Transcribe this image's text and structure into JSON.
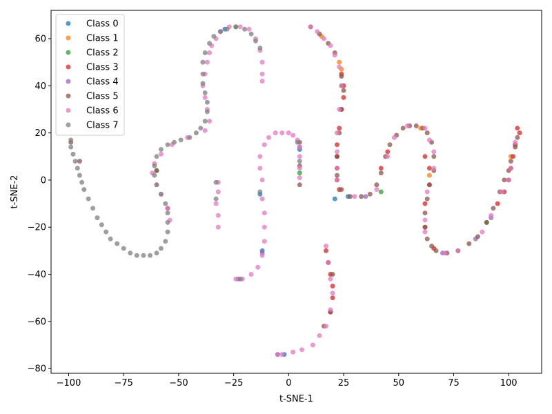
{
  "chart_data": {
    "type": "scatter",
    "title": "",
    "xlabel": "t-SNE-1",
    "ylabel": "t-SNE-2",
    "xlim": [
      -108,
      115
    ],
    "ylim": [
      -82,
      72
    ],
    "xticks": [
      -100,
      -75,
      -50,
      -25,
      0,
      25,
      50,
      75,
      100
    ],
    "yticks": [
      -80,
      -60,
      -40,
      -20,
      0,
      20,
      40,
      60
    ],
    "grid": false,
    "legend_position": "top-left",
    "point_alpha": 0.75,
    "series": [
      {
        "name": "Class 0",
        "color": "#1f77b4",
        "points": [
          [
            -29,
            64
          ],
          [
            -13,
            -6
          ],
          [
            5,
            13
          ],
          [
            -12,
            -30
          ],
          [
            21,
            -8
          ],
          [
            -5,
            -74
          ],
          [
            -2,
            -74
          ],
          [
            27,
            -7
          ]
        ]
      },
      {
        "name": "Class 1",
        "color": "#ff7f0e",
        "points": [
          [
            23,
            50
          ],
          [
            24,
            47
          ],
          [
            15,
            61
          ],
          [
            22,
            10
          ],
          [
            60,
            22
          ],
          [
            64,
            2
          ],
          [
            101,
            10
          ]
        ]
      },
      {
        "name": "Class 2",
        "color": "#2ca02c",
        "points": [
          [
            -60,
            4
          ],
          [
            -24,
            65
          ],
          [
            5,
            3
          ],
          [
            24,
            40
          ],
          [
            42,
            -5
          ],
          [
            90,
            -18
          ]
        ]
      },
      {
        "name": "Class 3",
        "color": "#d62728",
        "points": [
          [
            24,
            45
          ],
          [
            25,
            40
          ],
          [
            25,
            35
          ],
          [
            24,
            30
          ],
          [
            23,
            22
          ],
          [
            22,
            15
          ],
          [
            22,
            10
          ],
          [
            22,
            5
          ],
          [
            22,
            0
          ],
          [
            23,
            -4
          ],
          [
            17,
            -30
          ],
          [
            18,
            -35
          ],
          [
            19,
            -40
          ],
          [
            20,
            -45
          ],
          [
            20,
            -50
          ],
          [
            19,
            -56
          ],
          [
            62,
            10
          ],
          [
            64,
            5
          ],
          [
            64,
            -2
          ],
          [
            62,
            -10
          ],
          [
            62,
            -20
          ],
          [
            66,
            -29
          ],
          [
            104,
            22
          ],
          [
            105,
            20
          ],
          [
            103,
            15
          ],
          [
            102,
            10
          ],
          [
            101,
            5
          ],
          [
            100,
            0
          ],
          [
            98,
            -5
          ],
          [
            95,
            -10
          ],
          [
            45,
            12
          ],
          [
            42,
            5
          ]
        ]
      },
      {
        "name": "Class 4",
        "color": "#9467bd",
        "points": [
          [
            -31,
            63
          ],
          [
            -12,
            -31
          ],
          [
            5,
            14
          ],
          [
            -23,
            -42
          ],
          [
            35,
            -7
          ],
          [
            70,
            -31
          ],
          [
            85,
            -25
          ],
          [
            92,
            -16
          ]
        ]
      },
      {
        "name": "Class 5",
        "color": "#8c564b",
        "points": [
          [
            10,
            65
          ],
          [
            14,
            62
          ],
          [
            18,
            58
          ],
          [
            21,
            54
          ],
          [
            24,
            44
          ],
          [
            25,
            38
          ],
          [
            24,
            30
          ],
          [
            23,
            20
          ],
          [
            22,
            10
          ],
          [
            22,
            2
          ],
          [
            24,
            -4
          ],
          [
            28,
            -7
          ],
          [
            33,
            -7
          ],
          [
            37,
            -6
          ],
          [
            40,
            -2
          ],
          [
            42,
            3
          ],
          [
            44,
            10
          ],
          [
            46,
            15
          ],
          [
            49,
            19
          ],
          [
            52,
            22
          ],
          [
            55,
            23
          ],
          [
            58,
            23
          ],
          [
            61,
            22
          ],
          [
            63,
            20
          ],
          [
            65,
            16
          ],
          [
            66,
            10
          ],
          [
            66,
            4
          ],
          [
            64,
            -2
          ],
          [
            63,
            -8
          ],
          [
            62,
            -14
          ],
          [
            62,
            -20
          ],
          [
            63,
            -25
          ],
          [
            65,
            -28
          ],
          [
            67,
            -30
          ],
          [
            72,
            -31
          ],
          [
            77,
            -30
          ],
          [
            82,
            -27
          ],
          [
            86,
            -24
          ],
          [
            90,
            -18
          ],
          [
            93,
            -12
          ],
          [
            96,
            -5
          ],
          [
            98,
            0
          ],
          [
            100,
            4
          ],
          [
            101,
            8
          ],
          [
            103,
            14
          ],
          [
            104,
            18
          ],
          [
            5,
            16
          ],
          [
            5,
            6
          ],
          [
            5,
            -2
          ],
          [
            20,
            -40
          ],
          [
            19,
            -56
          ],
          [
            16,
            -62
          ],
          [
            -99,
            16
          ],
          [
            -95,
            8
          ],
          [
            -60,
            4
          ],
          [
            -55,
            -12
          ]
        ]
      },
      {
        "name": "Class 6",
        "color": "#e377c2",
        "points": [
          [
            -53,
            15
          ],
          [
            -58,
            11
          ],
          [
            -61,
            7
          ],
          [
            -62,
            3
          ],
          [
            -60,
            -2
          ],
          [
            -58,
            -6
          ],
          [
            -55,
            -12
          ],
          [
            -54,
            -17
          ],
          [
            -46,
            18
          ],
          [
            -38,
            21
          ],
          [
            -36,
            25
          ],
          [
            -37,
            30
          ],
          [
            -38,
            35
          ],
          [
            -39,
            40
          ],
          [
            -38,
            45
          ],
          [
            -37,
            50
          ],
          [
            -36,
            54
          ],
          [
            -35,
            57
          ],
          [
            -33,
            60
          ],
          [
            -31,
            63
          ],
          [
            -27,
            65
          ],
          [
            -22,
            65
          ],
          [
            -18,
            64
          ],
          [
            -15,
            60
          ],
          [
            -13,
            55
          ],
          [
            -12,
            50
          ],
          [
            -12,
            45
          ],
          [
            -12,
            42
          ],
          [
            -32,
            -1
          ],
          [
            -32,
            -5
          ],
          [
            -33,
            -10
          ],
          [
            -32,
            -15
          ],
          [
            -32,
            -20
          ],
          [
            -12,
            0
          ],
          [
            -13,
            5
          ],
          [
            -13,
            10
          ],
          [
            -11,
            15
          ],
          [
            -9,
            18
          ],
          [
            -6,
            20
          ],
          [
            -3,
            20
          ],
          [
            0,
            20
          ],
          [
            2,
            19
          ],
          [
            4,
            17
          ],
          [
            5,
            14
          ],
          [
            5,
            10
          ],
          [
            5,
            5
          ],
          [
            5,
            1
          ],
          [
            -12,
            -8
          ],
          [
            -11,
            -14
          ],
          [
            -11,
            -20
          ],
          [
            -11,
            -26
          ],
          [
            -12,
            -32
          ],
          [
            -14,
            -37
          ],
          [
            -17,
            -40
          ],
          [
            -21,
            -42
          ],
          [
            -24,
            -42
          ],
          [
            10,
            65
          ],
          [
            13,
            63
          ],
          [
            16,
            60
          ],
          [
            19,
            57
          ],
          [
            21,
            53
          ],
          [
            23,
            48
          ],
          [
            24,
            40
          ],
          [
            23,
            30
          ],
          [
            22,
            20
          ],
          [
            22,
            12
          ],
          [
            22,
            5
          ],
          [
            22,
            0
          ],
          [
            17,
            -28
          ],
          [
            18,
            -35
          ],
          [
            19,
            -42
          ],
          [
            20,
            -48
          ],
          [
            19,
            -55
          ],
          [
            17,
            -62
          ],
          [
            14,
            -66
          ],
          [
            11,
            -70
          ],
          [
            6,
            -72
          ],
          [
            2,
            -73
          ],
          [
            -3,
            -74
          ],
          [
            -5,
            -74
          ],
          [
            45,
            10
          ],
          [
            48,
            18
          ],
          [
            54,
            23
          ],
          [
            62,
            22
          ],
          [
            64,
            17
          ],
          [
            66,
            12
          ],
          [
            66,
            5
          ],
          [
            63,
            -5
          ],
          [
            62,
            -17
          ],
          [
            62,
            -22
          ],
          [
            71,
            -31
          ],
          [
            77,
            -30
          ],
          [
            88,
            -22
          ],
          [
            92,
            -15
          ],
          [
            97,
            -5
          ],
          [
            100,
            0
          ],
          [
            101,
            5
          ],
          [
            103,
            16
          ],
          [
            40,
            -4
          ],
          [
            30,
            -7
          ]
        ]
      },
      {
        "name": "Class 7",
        "color": "#7f7f7f",
        "points": [
          [
            -99,
            17
          ],
          [
            -99,
            14
          ],
          [
            -98,
            11
          ],
          [
            -97,
            8
          ],
          [
            -96,
            5
          ],
          [
            -95,
            2
          ],
          [
            -94,
            -1
          ],
          [
            -93,
            -4
          ],
          [
            -91,
            -8
          ],
          [
            -89,
            -12
          ],
          [
            -87,
            -16
          ],
          [
            -85,
            -19
          ],
          [
            -83,
            -22
          ],
          [
            -81,
            -25
          ],
          [
            -78,
            -27
          ],
          [
            -75,
            -29
          ],
          [
            -72,
            -31
          ],
          [
            -69,
            -32
          ],
          [
            -66,
            -32
          ],
          [
            -63,
            -32
          ],
          [
            -60,
            -31
          ],
          [
            -58,
            -29
          ],
          [
            -56,
            -26
          ],
          [
            -55,
            -22
          ],
          [
            -55,
            -18
          ],
          [
            -55,
            -14
          ],
          [
            -56,
            -10
          ],
          [
            -58,
            -6
          ],
          [
            -60,
            -2
          ],
          [
            -61,
            2
          ],
          [
            -61,
            6
          ],
          [
            -60,
            10
          ],
          [
            -58,
            13
          ],
          [
            -55,
            15
          ],
          [
            -52,
            16
          ],
          [
            -49,
            17
          ],
          [
            -45,
            18
          ],
          [
            -42,
            20
          ],
          [
            -40,
            22
          ],
          [
            -38,
            25
          ],
          [
            -37,
            29
          ],
          [
            -37,
            33
          ],
          [
            -38,
            37
          ],
          [
            -39,
            41
          ],
          [
            -39,
            45
          ],
          [
            -39,
            50
          ],
          [
            -38,
            54
          ],
          [
            -36,
            58
          ],
          [
            -34,
            61
          ],
          [
            -31,
            63
          ],
          [
            -28,
            64
          ],
          [
            -24,
            65
          ],
          [
            -20,
            64
          ],
          [
            -17,
            62
          ],
          [
            -15,
            59
          ],
          [
            -13,
            56
          ],
          [
            -33,
            -1
          ],
          [
            -33,
            -8
          ],
          [
            -13,
            -5
          ],
          [
            -22,
            -42
          ],
          [
            4,
            16
          ],
          [
            5,
            8
          ]
        ]
      }
    ]
  }
}
